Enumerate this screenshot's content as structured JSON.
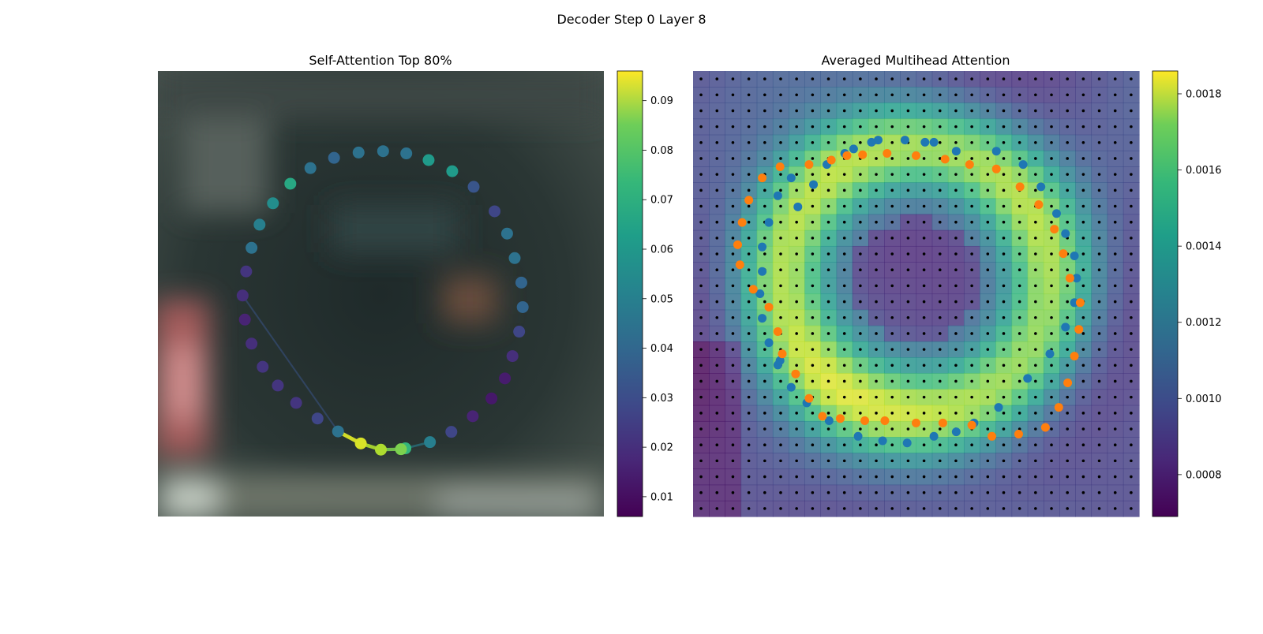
{
  "figure": {
    "title": "Decoder Step 0 Layer 8"
  },
  "chart_data": [
    {
      "type": "scatter",
      "title": "Self-Attention Top 80%",
      "x_axis_visible": false,
      "y_axis_visible": false,
      "background": "blurred image",
      "points": [
        {
          "x": 0.5,
          "y": 0.85,
          "v": 0.085
        },
        {
          "x": 0.555,
          "y": 0.847,
          "v": 0.065
        },
        {
          "x": 0.61,
          "y": 0.833,
          "v": 0.045
        },
        {
          "x": 0.658,
          "y": 0.81,
          "v": 0.025
        },
        {
          "x": 0.706,
          "y": 0.775,
          "v": 0.015
        },
        {
          "x": 0.748,
          "y": 0.735,
          "v": 0.012
        },
        {
          "x": 0.778,
          "y": 0.69,
          "v": 0.013
        },
        {
          "x": 0.795,
          "y": 0.64,
          "v": 0.018
        },
        {
          "x": 0.81,
          "y": 0.585,
          "v": 0.025
        },
        {
          "x": 0.818,
          "y": 0.53,
          "v": 0.035
        },
        {
          "x": 0.815,
          "y": 0.475,
          "v": 0.035
        },
        {
          "x": 0.8,
          "y": 0.42,
          "v": 0.04
        },
        {
          "x": 0.783,
          "y": 0.365,
          "v": 0.04
        },
        {
          "x": 0.755,
          "y": 0.315,
          "v": 0.025
        },
        {
          "x": 0.708,
          "y": 0.26,
          "v": 0.03
        },
        {
          "x": 0.66,
          "y": 0.225,
          "v": 0.055
        },
        {
          "x": 0.607,
          "y": 0.2,
          "v": 0.055
        },
        {
          "x": 0.557,
          "y": 0.185,
          "v": 0.04
        },
        {
          "x": 0.505,
          "y": 0.18,
          "v": 0.04
        },
        {
          "x": 0.45,
          "y": 0.183,
          "v": 0.04
        },
        {
          "x": 0.395,
          "y": 0.195,
          "v": 0.035
        },
        {
          "x": 0.342,
          "y": 0.218,
          "v": 0.04
        },
        {
          "x": 0.297,
          "y": 0.253,
          "v": 0.06
        },
        {
          "x": 0.258,
          "y": 0.297,
          "v": 0.05
        },
        {
          "x": 0.228,
          "y": 0.345,
          "v": 0.045
        },
        {
          "x": 0.21,
          "y": 0.397,
          "v": 0.04
        },
        {
          "x": 0.198,
          "y": 0.45,
          "v": 0.02
        },
        {
          "x": 0.19,
          "y": 0.504,
          "v": 0.018
        },
        {
          "x": 0.195,
          "y": 0.558,
          "v": 0.015
        },
        {
          "x": 0.21,
          "y": 0.612,
          "v": 0.018
        },
        {
          "x": 0.235,
          "y": 0.664,
          "v": 0.02
        },
        {
          "x": 0.269,
          "y": 0.706,
          "v": 0.02
        },
        {
          "x": 0.31,
          "y": 0.745,
          "v": 0.02
        },
        {
          "x": 0.358,
          "y": 0.78,
          "v": 0.025
        },
        {
          "x": 0.404,
          "y": 0.809,
          "v": 0.04
        },
        {
          "x": 0.455,
          "y": 0.836,
          "v": 0.091
        },
        {
          "x": 0.545,
          "y": 0.849,
          "v": 0.078
        }
      ],
      "attention_edges": [
        {
          "from": 35,
          "to": 34,
          "w": 0.091
        },
        {
          "from": 35,
          "to": 0,
          "w": 0.085
        },
        {
          "from": 0,
          "to": 36,
          "w": 0.078
        },
        {
          "from": 36,
          "to": 1,
          "w": 0.065
        },
        {
          "from": 1,
          "to": 2,
          "w": 0.045
        },
        {
          "from": 34,
          "to": 27,
          "w": 0.03
        }
      ],
      "colorbar": {
        "colormap": "viridis",
        "range": [
          0.006,
          0.096
        ],
        "ticks": [
          "0.01",
          "0.02",
          "0.03",
          "0.04",
          "0.05",
          "0.06",
          "0.07",
          "0.08",
          "0.09"
        ],
        "tick_values": [
          0.01,
          0.02,
          0.03,
          0.04,
          0.05,
          0.06,
          0.07,
          0.08,
          0.09
        ]
      }
    },
    {
      "type": "heatmap",
      "title": "Averaged Multihead Attention",
      "grid_size": [
        28,
        28
      ],
      "x_axis_visible": false,
      "y_axis_visible": false,
      "heatmap_pattern": "ring of high attention around a low-attention centre",
      "ring_center": [
        0.5,
        0.47
      ],
      "ring_radius": 0.3,
      "colorbar": {
        "colormap": "viridis",
        "range": [
          0.00069,
          0.00186
        ],
        "ticks": [
          "0.0008",
          "0.0010",
          "0.0012",
          "0.0014",
          "0.0016",
          "0.0018"
        ],
        "tick_values": [
          0.0008,
          0.001,
          0.0012,
          0.0014,
          0.0016,
          0.0018
        ]
      },
      "series": [
        {
          "color": "#1f77b4",
          "points": [
            [
              0.415,
              0.155
            ],
            [
              0.475,
              0.155
            ],
            [
              0.52,
              0.16
            ],
            [
              0.36,
              0.175
            ],
            [
              0.4,
              0.16
            ],
            [
              0.3,
              0.21
            ],
            [
              0.22,
              0.24
            ],
            [
              0.19,
              0.28
            ],
            [
              0.17,
              0.34
            ],
            [
              0.155,
              0.395
            ],
            [
              0.155,
              0.45
            ],
            [
              0.15,
              0.5
            ],
            [
              0.155,
              0.555
            ],
            [
              0.17,
              0.61
            ],
            [
              0.19,
              0.66
            ],
            [
              0.22,
              0.71
            ],
            [
              0.255,
              0.745
            ],
            [
              0.305,
              0.785
            ],
            [
              0.37,
              0.82
            ],
            [
              0.425,
              0.83
            ],
            [
              0.48,
              0.835
            ],
            [
              0.54,
              0.82
            ],
            [
              0.59,
              0.81
            ],
            [
              0.63,
              0.79
            ],
            [
              0.685,
              0.755
            ],
            [
              0.75,
              0.69
            ],
            [
              0.8,
              0.635
            ],
            [
              0.835,
              0.575
            ],
            [
              0.855,
              0.52
            ],
            [
              0.86,
              0.465
            ],
            [
              0.855,
              0.415
            ],
            [
              0.835,
              0.365
            ],
            [
              0.815,
              0.32
            ],
            [
              0.78,
              0.26
            ],
            [
              0.74,
              0.21
            ],
            [
              0.68,
              0.18
            ],
            [
              0.59,
              0.18
            ],
            [
              0.54,
              0.16
            ],
            [
              0.34,
              0.185
            ],
            [
              0.27,
              0.255
            ],
            [
              0.235,
              0.305
            ],
            [
              0.195,
              0.65
            ]
          ]
        },
        {
          "color": "#ff7f0e",
          "points": [
            [
              0.38,
              0.188
            ],
            [
              0.435,
              0.185
            ],
            [
              0.5,
              0.19
            ],
            [
              0.565,
              0.198
            ],
            [
              0.62,
              0.21
            ],
            [
              0.68,
              0.22
            ],
            [
              0.733,
              0.26
            ],
            [
              0.775,
              0.3
            ],
            [
              0.81,
              0.355
            ],
            [
              0.83,
              0.41
            ],
            [
              0.845,
              0.465
            ],
            [
              0.868,
              0.52
            ],
            [
              0.865,
              0.58
            ],
            [
              0.855,
              0.64
            ],
            [
              0.84,
              0.7
            ],
            [
              0.82,
              0.755
            ],
            [
              0.79,
              0.8
            ],
            [
              0.73,
              0.815
            ],
            [
              0.67,
              0.82
            ],
            [
              0.625,
              0.795
            ],
            [
              0.56,
              0.79
            ],
            [
              0.5,
              0.79
            ],
            [
              0.43,
              0.785
            ],
            [
              0.385,
              0.785
            ],
            [
              0.33,
              0.78
            ],
            [
              0.29,
              0.775
            ],
            [
              0.26,
              0.735
            ],
            [
              0.23,
              0.68
            ],
            [
              0.2,
              0.635
            ],
            [
              0.19,
              0.585
            ],
            [
              0.17,
              0.53
            ],
            [
              0.135,
              0.49
            ],
            [
              0.105,
              0.435
            ],
            [
              0.1,
              0.39
            ],
            [
              0.11,
              0.34
            ],
            [
              0.125,
              0.29
            ],
            [
              0.155,
              0.24
            ],
            [
              0.195,
              0.215
            ],
            [
              0.26,
              0.21
            ],
            [
              0.31,
              0.2
            ],
            [
              0.345,
              0.19
            ]
          ]
        }
      ]
    }
  ]
}
